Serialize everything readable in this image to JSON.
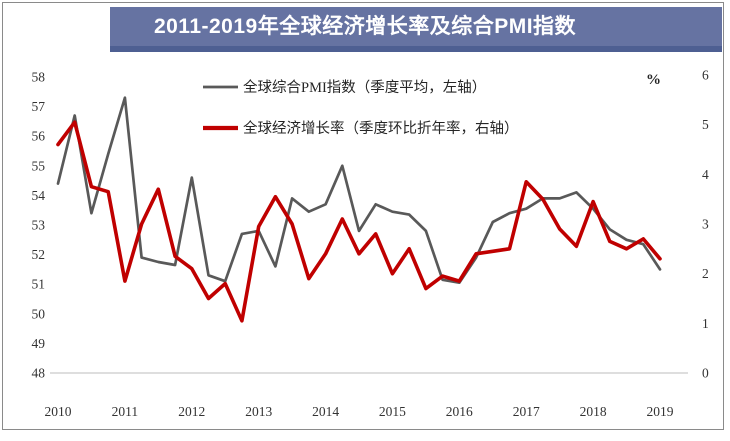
{
  "title": "2011-2019年全球经济增长率及综合PMI指数",
  "right_axis_unit_label": "%",
  "legend": [
    {
      "label": "全球综合PMI指数（季度平均，左轴）",
      "color": "#595959"
    },
    {
      "label": "全球经济增长率（季度环比折年率，右轴）",
      "color": "#c00000"
    }
  ],
  "colors": {
    "banner": "#6673a2",
    "banner_border": "#4e5f92",
    "pmi_line": "#595959",
    "growth_line": "#c00000",
    "axis_line": "#c9c9c9",
    "tick_text": "#333333",
    "frame_border": "#8a8a8a",
    "title_text": "#ffffff"
  },
  "chart_data": {
    "type": "line",
    "title": "2011-2019年全球经济增长率及综合PMI指数",
    "x_unit": "quarter",
    "x_year_labels": [
      "2010",
      "2011",
      "2012",
      "2013",
      "2014",
      "2015",
      "2016",
      "2017",
      "2018",
      "2019"
    ],
    "quarters": [
      "2010Q1",
      "2010Q2",
      "2010Q3",
      "2010Q4",
      "2011Q1",
      "2011Q2",
      "2011Q3",
      "2011Q4",
      "2012Q1",
      "2012Q2",
      "2012Q3",
      "2012Q4",
      "2013Q1",
      "2013Q2",
      "2013Q3",
      "2013Q4",
      "2014Q1",
      "2014Q2",
      "2014Q3",
      "2014Q4",
      "2015Q1",
      "2015Q2",
      "2015Q3",
      "2015Q4",
      "2016Q1",
      "2016Q2",
      "2016Q3",
      "2016Q4",
      "2017Q1",
      "2017Q2",
      "2017Q3",
      "2017Q4",
      "2018Q1",
      "2018Q2",
      "2018Q3",
      "2018Q4",
      "2019Q1"
    ],
    "left_axis": {
      "min": 48,
      "max": 58,
      "ticks": [
        48,
        49,
        50,
        51,
        52,
        53,
        54,
        55,
        56,
        57,
        58
      ]
    },
    "right_axis": {
      "min": 0,
      "max": 6,
      "ticks": [
        0,
        1,
        2,
        3,
        4,
        5,
        6
      ],
      "unit": "%"
    },
    "grid": false,
    "legend_position": "top-inside",
    "series": [
      {
        "name": "全球综合PMI指数（季度平均，左轴）",
        "axis": "left",
        "color": "#595959",
        "values": [
          54.4,
          56.7,
          53.4,
          55.4,
          57.3,
          51.9,
          51.75,
          51.65,
          54.6,
          51.3,
          51.1,
          52.7,
          52.8,
          51.6,
          53.9,
          53.45,
          53.7,
          55.0,
          52.8,
          53.7,
          53.45,
          53.35,
          52.8,
          51.15,
          51.05,
          51.9,
          53.1,
          53.4,
          53.55,
          53.9,
          53.9,
          54.1,
          53.55,
          52.85,
          52.5,
          52.35,
          51.5
        ]
      },
      {
        "name": "全球经济增长率（季度环比折年率，右轴）",
        "axis": "right",
        "color": "#c00000",
        "values": [
          4.6,
          5.05,
          3.75,
          3.65,
          1.85,
          3.0,
          3.7,
          2.35,
          2.1,
          1.5,
          1.8,
          1.05,
          2.95,
          3.55,
          3.0,
          1.9,
          2.4,
          3.1,
          2.4,
          2.8,
          2.0,
          2.5,
          1.7,
          1.95,
          1.85,
          2.4,
          2.45,
          2.5,
          3.85,
          3.5,
          2.9,
          2.55,
          3.45,
          2.65,
          2.5,
          2.7,
          2.3
        ]
      }
    ]
  }
}
